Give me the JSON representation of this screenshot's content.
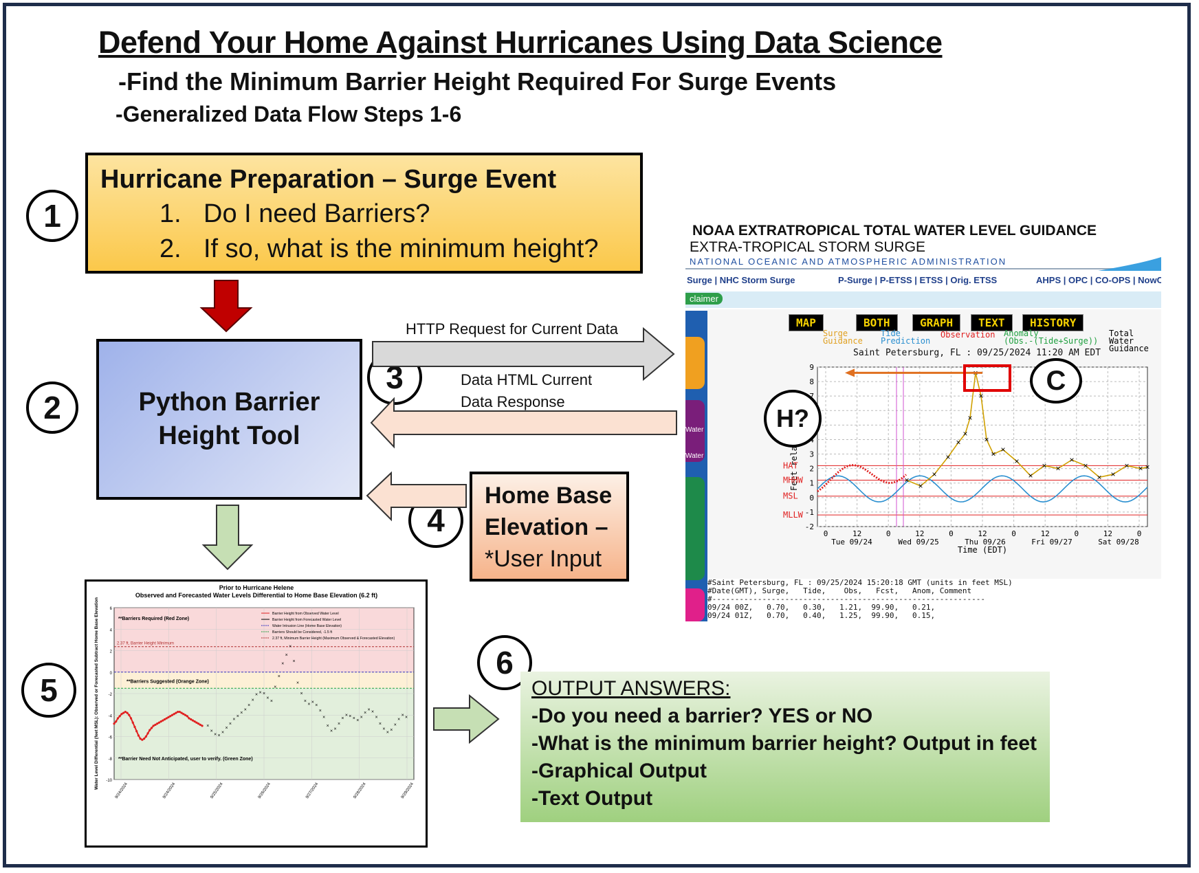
{
  "title": "Defend Your Home Against Hurricanes Using Data Science",
  "subtitle1": "-Find the Minimum Barrier Height Required For Surge Events",
  "subtitle2": "-Generalized Data Flow Steps 1-6",
  "steps": [
    "1",
    "2",
    "3",
    "4",
    "5",
    "6"
  ],
  "box1": {
    "title": "Hurricane Preparation – Surge Event",
    "items": [
      "1.",
      "Do I need Barriers?",
      "2.",
      "If so, what is the minimum height?"
    ]
  },
  "box2": {
    "line1": "Python Barrier",
    "line2": "Height Tool"
  },
  "http_request": "HTTP Request for Current Data",
  "http_response": {
    "line1": "Data HTML Current",
    "line2": "Data Response"
  },
  "box4": {
    "line1": "Home Base",
    "line2": "Elevation –",
    "line3": "*User Input"
  },
  "output": {
    "heading": "OUTPUT ANSWERS:",
    "lines": [
      "-Do you need a barrier? YES or NO",
      "-What is the minimum barrier height? Output in feet",
      "-Graphical Output",
      "-Text Output"
    ]
  },
  "callouts": {
    "c": "C",
    "h": "H?"
  },
  "noaa": {
    "title": "NOAA EXTRATROPICAL TOTAL WATER LEVEL GUIDANCE",
    "sub": "EXTRA-TROPICAL  STORM  SURGE",
    "agency": "NATIONAL  OCEANIC  AND  ATMOSPHERIC  ADMINISTRATION",
    "nav_left": "Surge | NHC Storm Surge",
    "nav_mid": "P-Surge | P-ETSS | ETSS | Orig. ETSS",
    "nav_right": "AHPS | OPC | CO-OPS | NowC",
    "disclaimer": "claimer",
    "tabs": [
      "MAP",
      "BOTH",
      "GRAPH",
      "TEXT",
      "HISTORY"
    ],
    "side_labels": [
      "Water",
      "Water"
    ],
    "legend": [
      "Surge",
      "Guidance",
      "Tide",
      "Prediction",
      "Observation",
      "Anomaly",
      "(Obs.-(Tide+Surge))",
      "Total Water",
      "Guidance"
    ],
    "station": "Saint Petersburg, FL : 09/25/2024 11:20 AM EDT",
    "ylabel": "Feet relative",
    "xlabel": "Time (EDT)",
    "yticks": [
      "9",
      "8",
      "7",
      "6",
      "5",
      "4",
      "3",
      "2",
      "1",
      "0",
      "-1",
      "-2"
    ],
    "ref_lines": [
      "HAT",
      "MHHW",
      "MSL",
      "MLLW"
    ],
    "xticks": [
      "0",
      "12",
      "0",
      "12",
      "0",
      "12",
      "0",
      "12",
      "0",
      "12",
      "0"
    ],
    "days": [
      "Tue 09/24",
      "Wed 09/25",
      "Thu 09/26",
      "Fri 09/27",
      "Sat 09/28"
    ],
    "text_lines": [
      "#Saint Petersburg, FL : 09/25/2024 15:20:18 GMT (units in feet MSL)",
      "#Date(GMT), Surge,   Tide,    Obs,   Fcst,   Anom, Comment",
      "#------------------------------------------------------------",
      "09/24 00Z,   0.70,   0.30,   1.21,  99.90,   0.21,",
      "09/24 01Z,   0.70,   0.40,   1.25,  99.90,   0.15,"
    ]
  },
  "chart_data": {
    "type": "line",
    "title": "Prior to Hurricane Helene",
    "subtitle": "Observed and Forecasted Water Levels Differential to Home Base Elevation (6.2 ft)",
    "ylabel": "Water Level Differential (feet MSL): Observed or Forecasted Subtract Home Base Elevation",
    "xlabel": "",
    "ylim": [
      -10,
      6
    ],
    "yticks": [
      "6",
      "4",
      "2",
      "0",
      "-2",
      "-4",
      "-6",
      "-8",
      "-10"
    ],
    "categories": [
      "9/24/2024",
      "9/24/2024",
      "9/25/2024",
      "9/26/2024",
      "9/27/2024",
      "9/28/2024",
      "9/29/2024"
    ],
    "zones": [
      "**Barriers Required (Red Zone)",
      "**Barriers Suggested (Orange Zone)",
      "**Barrier Need Not Anticipated, user to verify. (Green Zone)"
    ],
    "line_label": "2.37 ft, Barrier Height Minimum",
    "legend": [
      "Barrier Height from Observed Water Level",
      "Barrier Height from Forecasted Water Level",
      "Water Intrusion Line (Home Base Elevation)",
      "Barriers Should be Considered, -1.5 ft",
      "2.37 ft, Minimum Barrier Height (Maximum Observed & Forecasted Elevation)"
    ],
    "minimum_barrier_height": 2.37,
    "home_base_elevation": 6.2,
    "consider_threshold": -1.5,
    "series": [
      {
        "name": "Barrier Height from Observed Water Level",
        "x": [
          0,
          1,
          2,
          3,
          4,
          5,
          6,
          7,
          8,
          9,
          10,
          11,
          12,
          13,
          14,
          15,
          16,
          17,
          18,
          19,
          20,
          21,
          22,
          23,
          24,
          25,
          26,
          27,
          28,
          29,
          30,
          31,
          32,
          33,
          34,
          35,
          36,
          37,
          38,
          39,
          40,
          41,
          42,
          43,
          44,
          45,
          46,
          47
        ],
        "values": [
          -4.8,
          -4.6,
          -4.3,
          -4.1,
          -3.9,
          -3.8,
          -3.7,
          -3.8,
          -4.0,
          -4.3,
          -4.7,
          -5.1,
          -5.5,
          -5.9,
          -6.2,
          -6.3,
          -6.2,
          -6.0,
          -5.7,
          -5.4,
          -5.2,
          -5.0,
          -4.9,
          -4.8,
          -4.7,
          -4.6,
          -4.5,
          -4.4,
          -4.3,
          -4.2,
          -4.1,
          -4.0,
          -3.9,
          -3.8,
          -3.7,
          -3.7,
          -3.8,
          -3.9,
          -4.0,
          -4.1,
          -4.3,
          -4.4,
          -4.5,
          -4.6,
          -4.7,
          -4.8,
          -4.9,
          -5.0
        ]
      },
      {
        "name": "Barrier Height from Forecasted Water Level",
        "x": [
          50,
          52,
          54,
          56,
          58,
          60,
          62,
          64,
          66,
          68,
          70,
          72,
          74,
          76,
          78,
          80,
          82,
          84,
          86,
          88,
          90,
          92,
          94,
          96,
          98,
          100,
          102,
          104,
          106,
          108,
          110,
          112,
          114,
          116,
          118,
          120,
          122,
          124,
          126,
          128,
          130,
          132,
          134,
          136,
          138,
          140,
          142,
          144,
          146,
          148,
          150,
          152,
          154,
          156
        ],
        "values": [
          -5.0,
          -5.5,
          -5.8,
          -5.9,
          -5.6,
          -5.2,
          -4.8,
          -4.4,
          -4.1,
          -3.8,
          -3.5,
          -3.1,
          -2.6,
          -2.1,
          -1.9,
          -2.0,
          -2.4,
          -2.7,
          -1.4,
          -0.4,
          0.8,
          1.6,
          2.37,
          1.0,
          -1.0,
          -2.0,
          -2.7,
          -3.0,
          -2.8,
          -3.1,
          -3.6,
          -4.2,
          -5.0,
          -5.5,
          -5.3,
          -4.8,
          -4.3,
          -4.0,
          -4.1,
          -4.3,
          -4.5,
          -4.2,
          -3.8,
          -3.5,
          -3.7,
          -4.2,
          -4.8,
          -5.3,
          -5.6,
          -5.4,
          -4.9,
          -4.4,
          -4.0,
          -4.2
        ]
      }
    ]
  }
}
